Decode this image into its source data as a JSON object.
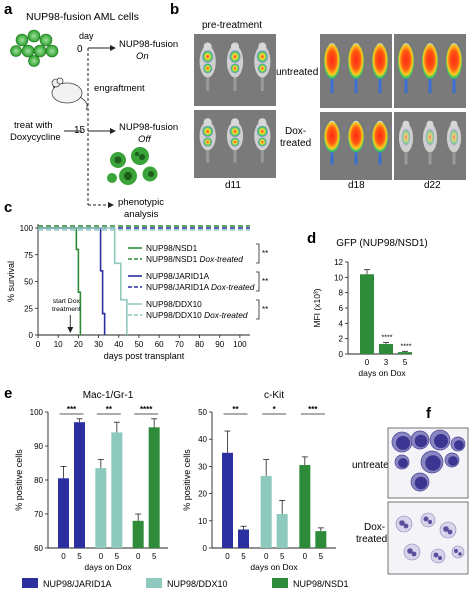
{
  "colors": {
    "green": "#2e8b3a",
    "blue": "#2b2fa0",
    "teal": "#8ec9bd",
    "dkgreen": "#2a7a2f",
    "dot": "#3aa43a",
    "grey": "#666666"
  },
  "panel_labels": {
    "a": "a",
    "b": "b",
    "c": "c",
    "d": "d",
    "e": "e",
    "f": "f"
  },
  "panel_a": {
    "title": "NUP98-fusion AML cells",
    "day_label": "day",
    "day0": "0",
    "day15": "15",
    "on_line1": "NUP98-fusion",
    "on_line2": "On",
    "engraftment": "engraftment",
    "treat_line1": "treat with",
    "treat_line2": "Doxycycline",
    "off_line1": "NUP98-fusion",
    "off_line2": "Off",
    "pheno_line1": "phenotypic",
    "pheno_line2": "analysis",
    "icons": [
      "cell-cluster-icon",
      "mouse-icon",
      "differentiated-cell-icon"
    ]
  },
  "panel_b": {
    "pre_treatment": "pre-treatment",
    "untreated": "untreated",
    "dox_line1": "Dox-",
    "dox_line2": "treated",
    "d11": "d11",
    "d18": "d18",
    "d22": "d22"
  },
  "panel_f": {
    "untreated": "untreated",
    "dox_line1": "Dox-",
    "dox_line2": "treated"
  },
  "chart_data": [
    {
      "id": "c",
      "type": "line",
      "xlabel": "days post transplant",
      "ylabel": "% survival",
      "xlim": [
        0,
        105
      ],
      "ylim": [
        0,
        100
      ],
      "xticks": [
        0,
        10,
        20,
        30,
        40,
        50,
        60,
        70,
        80,
        90,
        100
      ],
      "yticks": [
        0,
        25,
        50,
        75,
        100
      ],
      "annotation": {
        "line1": "start Dox",
        "line2": "treatment",
        "x": 16
      },
      "series": [
        {
          "name": "NUP98/NSD1",
          "color": "#2e8b3a",
          "dashed": false,
          "drops": [
            [
              19,
              80
            ],
            [
              20,
              40
            ],
            [
              21,
              0
            ]
          ]
        },
        {
          "name": "NUP98/NSD1 Dox-treated",
          "color": "#2e8b3a",
          "dashed": true,
          "drops": []
        },
        {
          "name": "NUP98/JARID1A",
          "color": "#2b2fa0",
          "dashed": false,
          "drops": [
            [
              31,
              60
            ],
            [
              32,
              20
            ],
            [
              33,
              0
            ]
          ]
        },
        {
          "name": "NUP98/JARID1A Dox-treated",
          "color": "#2b2fa0",
          "dashed": true,
          "drops": []
        },
        {
          "name": "NUP98/DDX10",
          "color": "#8ec9bd",
          "dashed": false,
          "drops": [
            [
              38,
              67
            ],
            [
              41,
              33
            ],
            [
              44,
              0
            ]
          ]
        },
        {
          "name": "NUP98/DDX10 Dox-treated",
          "color": "#8ec9bd",
          "dashed": true,
          "drops": []
        }
      ],
      "legend_groups": [
        {
          "solid": "NUP98/NSD1",
          "dashed": "NUP98/NSD1",
          "dox": "Dox-treated",
          "color": "#2e8b3a",
          "sig": "**"
        },
        {
          "solid": "NUP98/JARID1A",
          "dashed": "NUP98/JARID1A",
          "dox": "Dox-treated",
          "color": "#2b2fa0",
          "sig": "**"
        },
        {
          "solid": "NUP98/DDX10",
          "dashed": "NUP98/DDX10",
          "dox": "Dox-treated",
          "color": "#8ec9bd",
          "sig": "**"
        }
      ]
    },
    {
      "id": "d",
      "type": "bar",
      "title": "GFP (NUP98/NSD1)",
      "xlabel": "days on Dox",
      "ylabel": "MFI (x10³)",
      "categories": [
        "0",
        "3",
        "5"
      ],
      "values": [
        10.4,
        1.3,
        0.25
      ],
      "errors": [
        0.6,
        0.2,
        0.1
      ],
      "sig": [
        "",
        "****",
        "****"
      ],
      "ylim": [
        0,
        12
      ],
      "yticks": [
        0,
        2,
        4,
        6,
        8,
        10,
        12
      ],
      "color": "#2e8b3a"
    },
    {
      "id": "e1",
      "type": "bar",
      "title": "Mac-1/Gr-1",
      "xlabel": "days on Dox",
      "ylabel": "% positive cells",
      "ylim": [
        60,
        100
      ],
      "yticks": [
        60,
        70,
        80,
        90,
        100
      ],
      "groups": [
        {
          "name": "NUP98/JARID1A",
          "color": "#2b2fa0",
          "categories": [
            "0",
            "5"
          ],
          "values": [
            80.5,
            97
          ],
          "errors": [
            3.5,
            1
          ],
          "sig": "***"
        },
        {
          "name": "NUP98/DDX10",
          "color": "#8ec9bd",
          "categories": [
            "0",
            "5"
          ],
          "values": [
            83.5,
            94
          ],
          "errors": [
            2.5,
            3
          ],
          "sig": "**"
        },
        {
          "name": "NUP98/NSD1",
          "color": "#2e8b3a",
          "categories": [
            "0",
            "5"
          ],
          "values": [
            68,
            95.5
          ],
          "errors": [
            2,
            2.5
          ],
          "sig": "****"
        }
      ]
    },
    {
      "id": "e2",
      "type": "bar",
      "title": "c-Kit",
      "xlabel": "days on Dox",
      "ylabel": "% positive cells",
      "ylim": [
        0,
        50
      ],
      "yticks": [
        0,
        10,
        20,
        30,
        40,
        50
      ],
      "groups": [
        {
          "name": "NUP98/JARID1A",
          "color": "#2b2fa0",
          "categories": [
            "0",
            "5"
          ],
          "values": [
            35,
            6.8
          ],
          "errors": [
            8,
            1.2
          ],
          "sig": "**"
        },
        {
          "name": "NUP98/DDX10",
          "color": "#8ec9bd",
          "categories": [
            "0",
            "5"
          ],
          "values": [
            26.5,
            12.5
          ],
          "errors": [
            6,
            5
          ],
          "sig": "*"
        },
        {
          "name": "NUP98/NSD1",
          "color": "#2e8b3a",
          "categories": [
            "0",
            "5"
          ],
          "values": [
            30.5,
            6.2
          ],
          "errors": [
            3,
            1.2
          ],
          "sig": "***"
        }
      ]
    }
  ],
  "legend_e": [
    {
      "label": "NUP98/JARID1A",
      "color": "#2b2fa0"
    },
    {
      "label": "NUP98/DDX10",
      "color": "#8ec9bd"
    },
    {
      "label": "NUP98/NSD1",
      "color": "#2e8b3a"
    }
  ]
}
